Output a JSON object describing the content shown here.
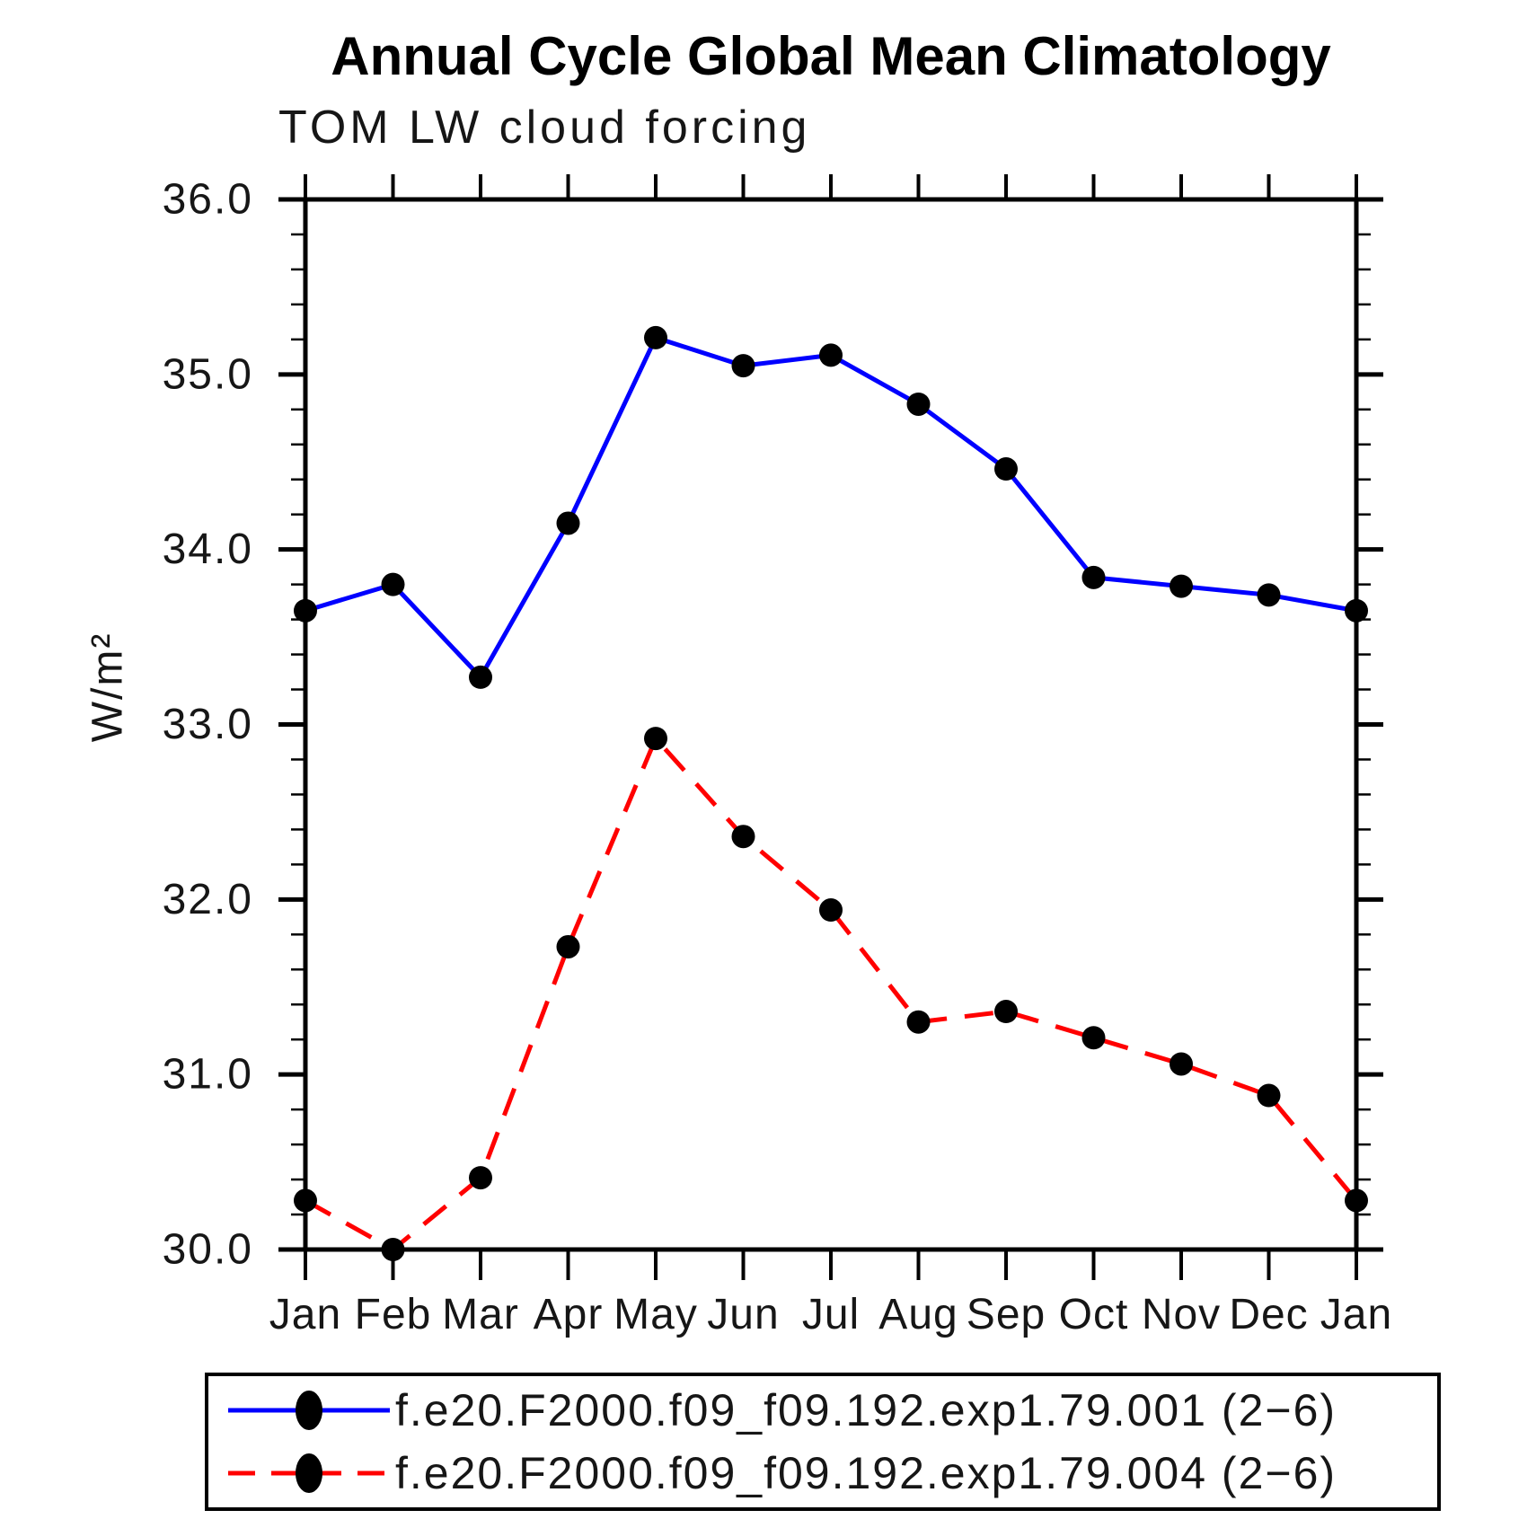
{
  "title": "Annual Cycle Global Mean Climatology",
  "subtitle": "TOM LW cloud forcing",
  "ylabel": "W/m²",
  "colors": {
    "axis": "#000000",
    "marker": "#000000",
    "background": "#ffffff"
  },
  "chart_data": {
    "type": "line",
    "title": "Annual Cycle Global Mean Climatology",
    "subtitle": "TOM LW cloud forcing",
    "xlabel": "",
    "ylabel": "W/m²",
    "categories": [
      "Jan",
      "Feb",
      "Mar",
      "Apr",
      "May",
      "Jun",
      "Jul",
      "Aug",
      "Sep",
      "Oct",
      "Nov",
      "Dec",
      "Jan"
    ],
    "ylim": [
      30.0,
      36.0
    ],
    "ytick_interval": 1.0,
    "ytick_labels": [
      "30.0",
      "31.0",
      "32.0",
      "33.0",
      "34.0",
      "35.0",
      "36.0"
    ],
    "minor_tick_interval": 0.2,
    "grid": false,
    "legend_position": "bottom",
    "series": [
      {
        "name": "f.e20.F2000.f09_f09.192.exp1.79.001 (2−6)",
        "color": "#0000ff",
        "style": "solid",
        "marker": "filled-circle",
        "values": [
          33.65,
          33.8,
          33.27,
          34.15,
          35.21,
          35.05,
          35.11,
          34.83,
          34.46,
          33.84,
          33.79,
          33.74,
          33.65
        ]
      },
      {
        "name": "f.e20.F2000.f09_f09.192.exp1.79.004 (2−6)",
        "color": "#ff0000",
        "style": "dashed",
        "marker": "filled-circle",
        "values": [
          30.28,
          30.0,
          30.41,
          31.73,
          32.92,
          32.36,
          31.94,
          31.3,
          31.36,
          31.21,
          31.06,
          30.88,
          30.28
        ]
      }
    ]
  }
}
